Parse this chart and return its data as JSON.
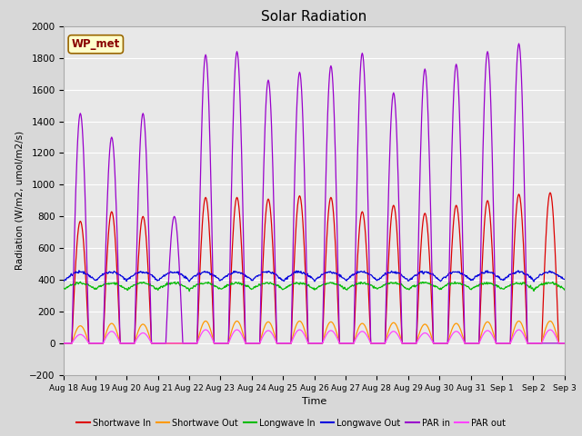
{
  "title": "Solar Radiation",
  "xlabel": "Time",
  "ylabel": "Radiation (W/m2, umol/m2/s)",
  "ylim": [
    -200,
    2000
  ],
  "yticks": [
    -200,
    0,
    200,
    400,
    600,
    800,
    1000,
    1200,
    1400,
    1600,
    1800,
    2000
  ],
  "n_days": 16,
  "bg_color": "#d8d8d8",
  "plot_bg_color": "#e8e8e8",
  "grid_color": "#ffffff",
  "colors": {
    "shortwave_in": "#dd0000",
    "shortwave_out": "#ff9900",
    "longwave_in": "#00bb00",
    "longwave_out": "#0000dd",
    "par_in": "#9900cc",
    "par_out": "#ff44ff"
  },
  "legend_labels": [
    "Shortwave In",
    "Shortwave Out",
    "Longwave In",
    "Longwave Out",
    "PAR in",
    "PAR out"
  ],
  "wp_met_label": "WP_met",
  "wp_met_bg": "#ffffcc",
  "wp_met_border": "#996600",
  "par_peaks": [
    1450,
    1300,
    1450,
    800,
    1820,
    1840,
    1660,
    1710,
    1750,
    1830,
    1580,
    1730,
    1760,
    1840,
    1890,
    0
  ],
  "sw_peaks": [
    770,
    830,
    800,
    0,
    920,
    920,
    910,
    930,
    920,
    830,
    870,
    820,
    870,
    900,
    940,
    950
  ],
  "swo_peaks": [
    110,
    125,
    120,
    0,
    140,
    140,
    135,
    140,
    135,
    125,
    130,
    120,
    125,
    135,
    140,
    140
  ],
  "par_out_peaks": [
    55,
    75,
    65,
    0,
    85,
    85,
    80,
    85,
    80,
    75,
    75,
    65,
    75,
    80,
    85,
    85
  ],
  "lw_in_base": 340,
  "lw_out_base": 395
}
